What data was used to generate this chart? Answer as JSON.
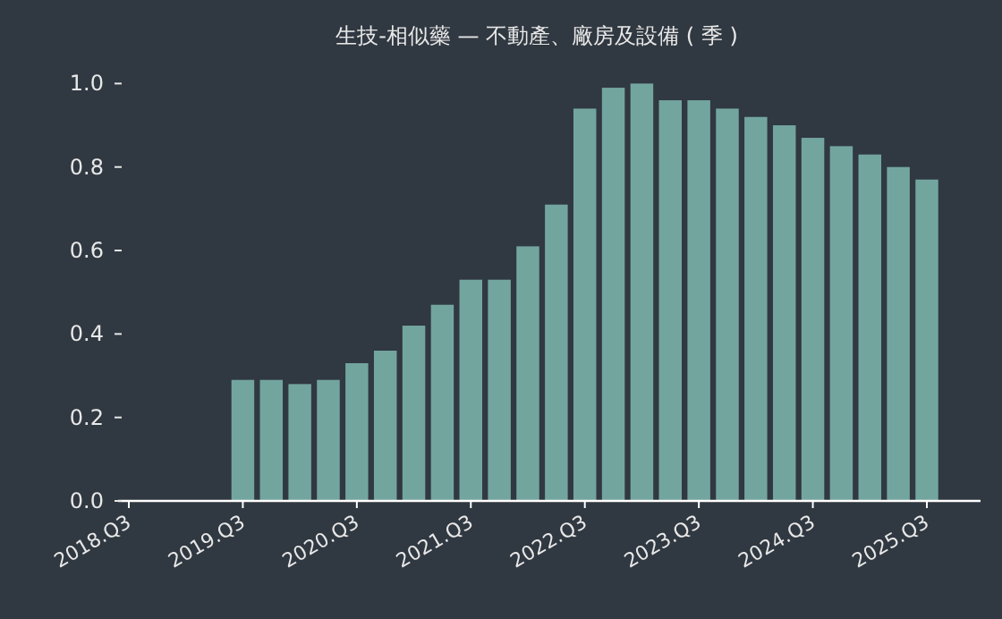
{
  "chart_data": {
    "type": "bar",
    "title": "生技-相似藥 — 不動產、廠房及設備 ( 季 )",
    "categories": [
      "2018.Q3",
      null,
      null,
      null,
      "2019.Q3",
      null,
      null,
      null,
      "2020.Q3",
      null,
      null,
      null,
      "2021.Q3",
      null,
      null,
      null,
      "2022.Q3",
      null,
      null,
      null,
      "2023.Q3",
      null,
      null,
      null,
      "2024.Q3",
      null,
      null,
      null,
      "2025.Q3"
    ],
    "values": [
      null,
      null,
      null,
      null,
      0.29,
      0.29,
      0.28,
      0.29,
      0.33,
      0.36,
      0.42,
      0.47,
      0.53,
      0.53,
      0.61,
      0.71,
      0.94,
      0.99,
      1.0,
      0.96,
      0.96,
      0.94,
      0.92,
      0.9,
      0.87,
      0.85,
      0.83,
      0.8,
      0.77
    ],
    "color": "#73a59f",
    "ylim": [
      0,
      1.0
    ],
    "yticks": [
      {
        "value": 0,
        "label": "0.0"
      },
      {
        "value": 0.2,
        "label": "0.2"
      },
      {
        "value": 0.4,
        "label": "0.4"
      },
      {
        "value": 0.6,
        "label": "0.6"
      },
      {
        "value": 0.8,
        "label": "0.8"
      },
      {
        "value": 1,
        "label": "1.0"
      }
    ]
  }
}
